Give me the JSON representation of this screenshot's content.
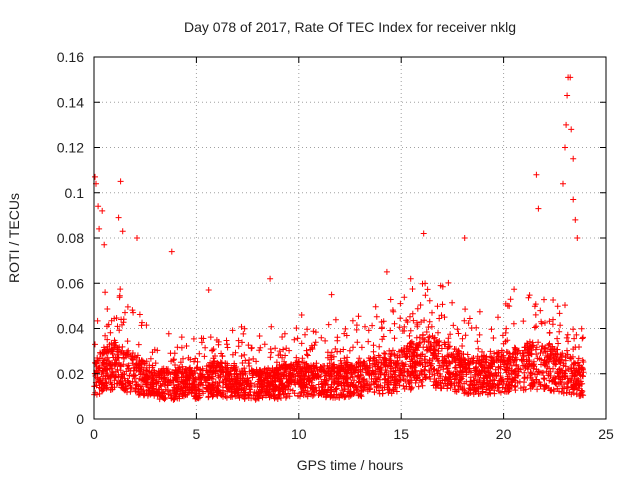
{
  "chart_data": {
    "type": "scatter",
    "title": "Day 078 of 2017, Rate Of TEC Index for receiver nklg",
    "xlabel": "GPS time / hours",
    "ylabel": "ROTI / TECUs",
    "xlim": [
      0,
      25
    ],
    "ylim": [
      0,
      0.16
    ],
    "x_ticks": [
      0,
      5,
      10,
      15,
      20,
      25
    ],
    "y_ticks": [
      0,
      0.02,
      0.04,
      0.06,
      0.08,
      0.1,
      0.12,
      0.14,
      0.16
    ],
    "x_tick_labels": [
      "0",
      "5",
      "10",
      "15",
      "20",
      "25"
    ],
    "y_tick_labels": [
      "0",
      "0.02",
      "0.04",
      "0.06",
      "0.08",
      "0.1",
      "0.12",
      "0.14",
      "0.16"
    ],
    "grid": true,
    "marker": "+",
    "marker_color": "#ff0000",
    "x_range_of_points": [
      0,
      23.9
    ],
    "baseline_profile": [
      {
        "x": 0.0,
        "y": 0.018
      },
      {
        "x": 0.5,
        "y": 0.022
      },
      {
        "x": 1.0,
        "y": 0.024
      },
      {
        "x": 1.5,
        "y": 0.022
      },
      {
        "x": 2.0,
        "y": 0.02
      },
      {
        "x": 3.0,
        "y": 0.016
      },
      {
        "x": 4.0,
        "y": 0.015
      },
      {
        "x": 5.0,
        "y": 0.016
      },
      {
        "x": 6.0,
        "y": 0.018
      },
      {
        "x": 7.0,
        "y": 0.016
      },
      {
        "x": 8.0,
        "y": 0.015
      },
      {
        "x": 9.0,
        "y": 0.016
      },
      {
        "x": 10.0,
        "y": 0.018
      },
      {
        "x": 11.0,
        "y": 0.017
      },
      {
        "x": 12.0,
        "y": 0.017
      },
      {
        "x": 13.0,
        "y": 0.018
      },
      {
        "x": 14.0,
        "y": 0.02
      },
      {
        "x": 15.0,
        "y": 0.021
      },
      {
        "x": 16.0,
        "y": 0.026
      },
      {
        "x": 17.0,
        "y": 0.024
      },
      {
        "x": 18.0,
        "y": 0.02
      },
      {
        "x": 19.0,
        "y": 0.019
      },
      {
        "x": 20.0,
        "y": 0.021
      },
      {
        "x": 21.0,
        "y": 0.023
      },
      {
        "x": 22.0,
        "y": 0.024
      },
      {
        "x": 23.0,
        "y": 0.02
      },
      {
        "x": 23.9,
        "y": 0.018
      }
    ],
    "notable_points": [
      {
        "x": 0.05,
        "y": 0.107
      },
      {
        "x": 0.1,
        "y": 0.104
      },
      {
        "x": 0.2,
        "y": 0.094
      },
      {
        "x": 0.25,
        "y": 0.084
      },
      {
        "x": 0.4,
        "y": 0.092
      },
      {
        "x": 0.5,
        "y": 0.077
      },
      {
        "x": 1.3,
        "y": 0.105
      },
      {
        "x": 1.2,
        "y": 0.089
      },
      {
        "x": 1.4,
        "y": 0.083
      },
      {
        "x": 2.1,
        "y": 0.08
      },
      {
        "x": 3.8,
        "y": 0.074
      },
      {
        "x": 5.6,
        "y": 0.057
      },
      {
        "x": 8.6,
        "y": 0.062
      },
      {
        "x": 11.6,
        "y": 0.055
      },
      {
        "x": 14.3,
        "y": 0.065
      },
      {
        "x": 16.1,
        "y": 0.082
      },
      {
        "x": 18.1,
        "y": 0.08
      },
      {
        "x": 21.6,
        "y": 0.108
      },
      {
        "x": 21.7,
        "y": 0.093
      },
      {
        "x": 22.9,
        "y": 0.104
      },
      {
        "x": 23.0,
        "y": 0.12
      },
      {
        "x": 23.05,
        "y": 0.13
      },
      {
        "x": 23.1,
        "y": 0.143
      },
      {
        "x": 23.15,
        "y": 0.151
      },
      {
        "x": 23.25,
        "y": 0.151
      },
      {
        "x": 23.3,
        "y": 0.128
      },
      {
        "x": 23.4,
        "y": 0.115
      },
      {
        "x": 23.4,
        "y": 0.097
      },
      {
        "x": 23.5,
        "y": 0.088
      },
      {
        "x": 23.6,
        "y": 0.08
      }
    ],
    "peak_value": 0.151,
    "peak_time_hours": 23.2
  }
}
